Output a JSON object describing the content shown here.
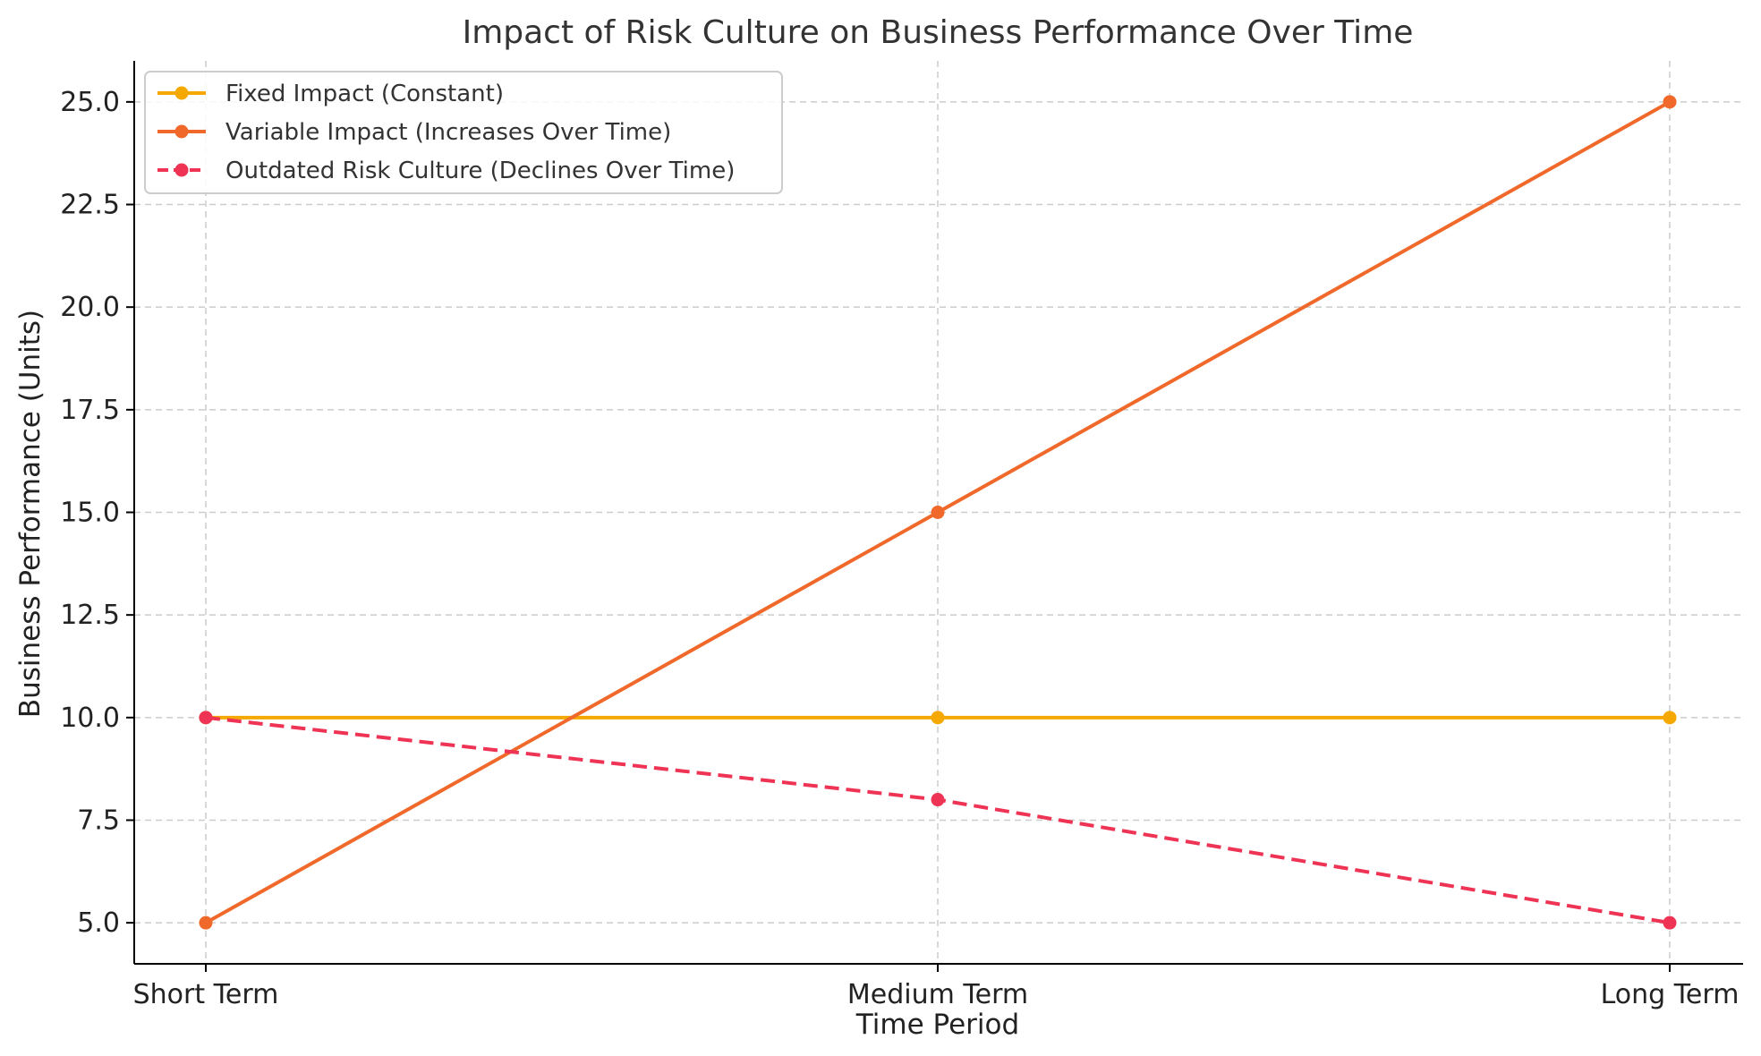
{
  "chart_data": {
    "type": "line",
    "title": "Impact of Risk Culture on Business Performance Over Time",
    "xlabel": "Time Period",
    "ylabel": "Business Performance (Units)",
    "categories": [
      "Short Term",
      "Medium Term",
      "Long Term"
    ],
    "ylim": [
      4.0,
      26.0
    ],
    "yticks": [
      5.0,
      7.5,
      10.0,
      12.5,
      15.0,
      17.5,
      20.0,
      22.5,
      25.0
    ],
    "ytick_labels": [
      "5.0",
      "7.5",
      "10.0",
      "12.5",
      "15.0",
      "17.5",
      "20.0",
      "22.5",
      "25.0"
    ],
    "grid": true,
    "legend_position": "top-left",
    "series": [
      {
        "name": "Fixed Impact (Constant)",
        "values": [
          10,
          10,
          10
        ],
        "color": "#F5A800",
        "style": "solid"
      },
      {
        "name": "Variable Impact (Increases Over Time)",
        "values": [
          5,
          15,
          25
        ],
        "color": "#F0692A",
        "style": "solid"
      },
      {
        "name": "Outdated Risk Culture (Declines Over Time)",
        "values": [
          10,
          8,
          5
        ],
        "color": "#EE3354",
        "style": "dashed"
      }
    ]
  }
}
